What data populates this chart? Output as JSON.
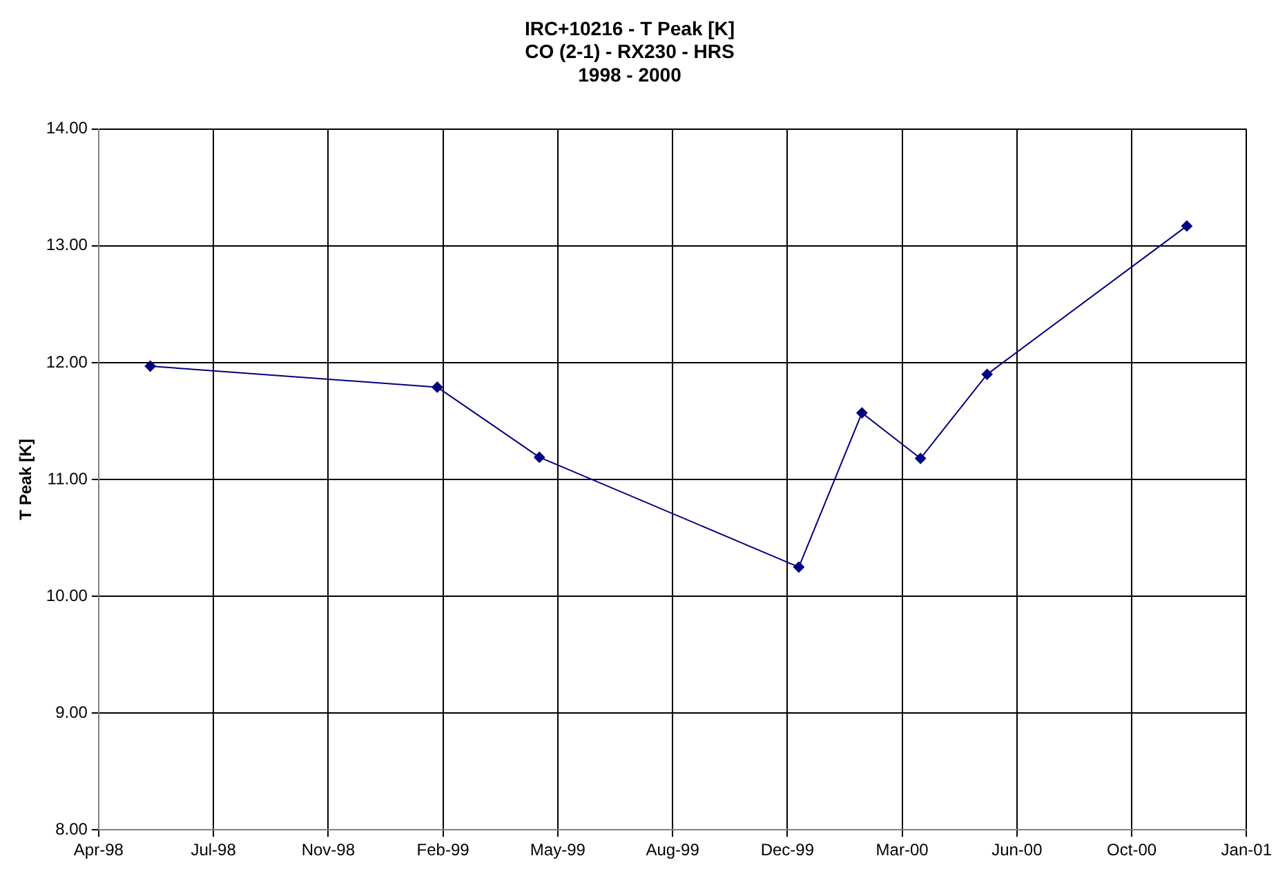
{
  "chart_data": {
    "type": "line",
    "title": [
      "IRC+10216 - T Peak [K]",
      "CO (2-1) - RX230 - HRS",
      "1998 - 2000"
    ],
    "ylabel": "T Peak [K]",
    "x": [
      "1998-05-31",
      "1999-02-05",
      "1999-05-05",
      "1999-12-17",
      "2000-02-10",
      "2000-04-01",
      "2000-05-29",
      "2000-11-19"
    ],
    "series": [
      {
        "color": "#000080",
        "values": [
          11.97,
          11.79,
          11.19,
          10.25,
          11.57,
          11.18,
          11.9,
          13.17
        ]
      }
    ],
    "xlim": [
      "1998-04-16",
      "2001-01-10"
    ],
    "xticks": [
      {
        "value": "1998-04-16",
        "label": "Apr-98"
      },
      {
        "value": "1998-07-25",
        "label": "Jul-98"
      },
      {
        "value": "1998-11-02",
        "label": "Nov-98"
      },
      {
        "value": "1999-02-10",
        "label": "Feb-99"
      },
      {
        "value": "1999-05-21",
        "label": "May-99"
      },
      {
        "value": "1999-08-29",
        "label": "Aug-99"
      },
      {
        "value": "1999-12-07",
        "label": "Dec-99"
      },
      {
        "value": "2000-03-16",
        "label": "Mar-00"
      },
      {
        "value": "2000-06-24",
        "label": "Jun-00"
      },
      {
        "value": "2000-10-02",
        "label": "Oct-00"
      },
      {
        "value": "2001-01-10",
        "label": "Jan-01"
      }
    ],
    "ylim": [
      8,
      14
    ],
    "yticks": [
      {
        "value": 8,
        "label": "8.00"
      },
      {
        "value": 9,
        "label": "9.00"
      },
      {
        "value": 10,
        "label": "10.00"
      },
      {
        "value": 11,
        "label": "11.00"
      },
      {
        "value": 12,
        "label": "12.00"
      },
      {
        "value": 13,
        "label": "13.00"
      },
      {
        "value": 14,
        "label": "14.00"
      }
    ],
    "grid": true,
    "marker": "diamond",
    "line_style": "solid",
    "legend": false
  }
}
